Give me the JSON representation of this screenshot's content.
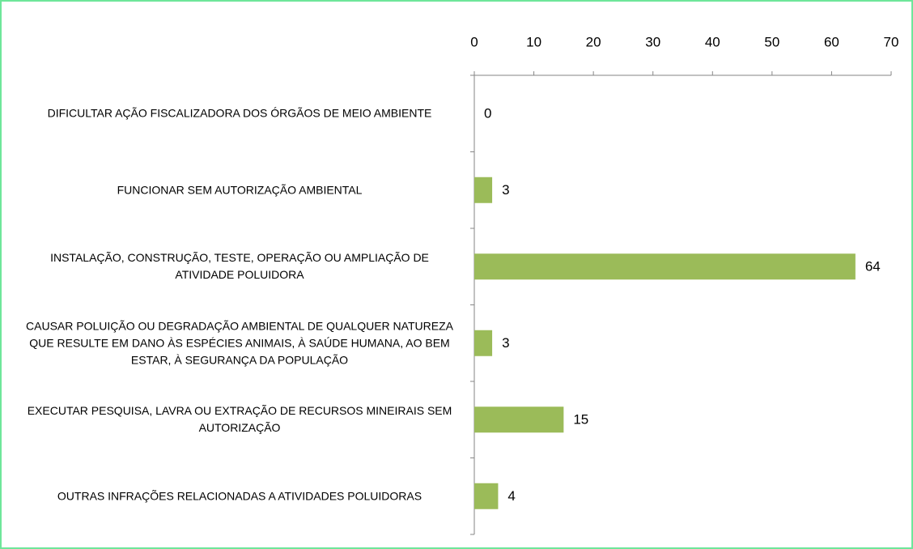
{
  "chart_data": {
    "type": "bar",
    "orientation": "horizontal",
    "categories": [
      "DIFICULTAR AÇÃO FISCALIZADORA DOS ÓRGÃOS DE MEIO AMBIENTE",
      "FUNCIONAR SEM AUTORIZAÇÃO AMBIENTAL",
      "INSTALAÇÃO, CONSTRUÇÃO, TESTE, OPERAÇÃO OU AMPLIAÇÃO DE ATIVIDADE POLUIDORA",
      "CAUSAR POLUIÇÃO OU DEGRADAÇÃO AMBIENTAL DE QUALQUER NATUREZA QUE RESULTE EM DANO ÀS ESPÉCIES ANIMAIS, À SAÚDE HUMANA, AO BEM ESTAR, À SEGURANÇA DA POPULAÇÃO",
      "EXECUTAR PESQUISA, LAVRA OU EXTRAÇÃO DE RECURSOS MINEIRAIS SEM AUTORIZAÇÃO",
      "OUTRAS INFRAÇÕES RELACIONADAS A ATIVIDADES POLUIDORAS"
    ],
    "values": [
      0,
      3,
      64,
      3,
      15,
      4
    ],
    "color": "#9bbb59",
    "xlim": [
      0,
      70
    ],
    "xticks": [
      0,
      10,
      20,
      30,
      40,
      50,
      60,
      70
    ],
    "grid": false
  }
}
